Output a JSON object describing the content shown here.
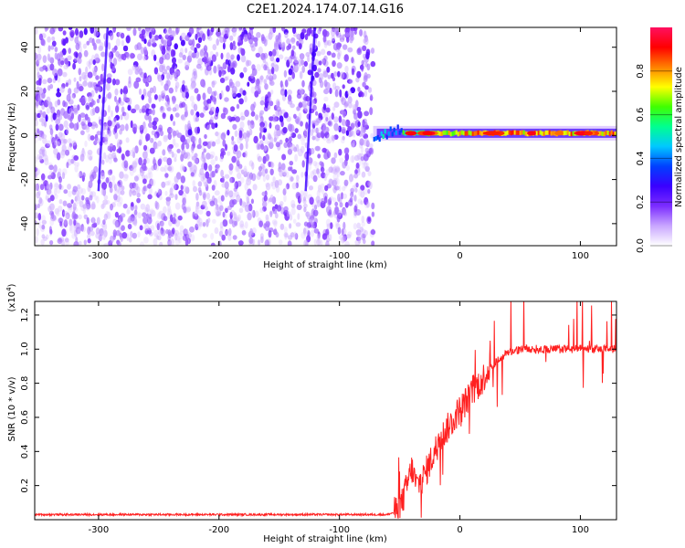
{
  "figure_title": "C2E1.2024.174.07.14.G16",
  "chart_data": [
    {
      "type": "heatmap",
      "xlabel": "Height of straight line (km)",
      "ylabel": "Frequency (Hz)",
      "xlim": [
        -353,
        130
      ],
      "ylim": [
        -50,
        49
      ],
      "xticks": [
        -300,
        -200,
        -100,
        0,
        100
      ],
      "xtick_labels": [
        "-300",
        "-200",
        "-100",
        "0",
        "100"
      ],
      "yticks": [
        -40,
        -20,
        0,
        20,
        40
      ],
      "ytick_labels": [
        "-40",
        "-20",
        "0",
        "20",
        "40"
      ],
      "colorbar": {
        "label": "Normalized spectral amplitude",
        "range": [
          0,
          1
        ],
        "ticks": [
          0.0,
          0.2,
          0.4,
          0.6,
          0.8
        ],
        "tick_labels": [
          "0.0",
          "0.2",
          "0.4",
          "0.6",
          "0.8"
        ],
        "colors": [
          "#ffffff",
          "#c9a6ff",
          "#7b2cff",
          "#3a00ff",
          "#0040ff",
          "#00c8ff",
          "#00ff90",
          "#40ff00",
          "#ffff00",
          "#ff8000",
          "#ff0000",
          "#ff1060"
        ]
      },
      "regions": [
        {
          "name": "scattered noise",
          "x": [
            -353,
            -72
          ],
          "y": [
            -50,
            49
          ],
          "amplitude": [
            0.0,
            0.25
          ]
        },
        {
          "name": "carrier line",
          "x": [
            -72,
            130
          ],
          "y_center": 1,
          "amplitude": [
            0.3,
            1.0
          ]
        }
      ],
      "streaks_x": [
        -297,
        -125
      ]
    },
    {
      "type": "line",
      "xlabel": "Height of straight line (km)",
      "ylabel": "SNR (10 * v/v)",
      "y_multiplier": "(x10^4)",
      "xlim": [
        -353,
        130
      ],
      "ylim": [
        0,
        1.28
      ],
      "xticks": [
        -300,
        -200,
        -100,
        0,
        100
      ],
      "xtick_labels": [
        "-300",
        "-200",
        "-100",
        "0",
        "100"
      ],
      "yticks": [
        0.2,
        0.4,
        0.6,
        0.8,
        1.0,
        1.2
      ],
      "ytick_labels": [
        "0.2",
        "0.4",
        "0.6",
        "0.8",
        "1.0",
        "1.2"
      ],
      "color": "#ff2020",
      "x": [
        -353,
        -300,
        -250,
        -200,
        -150,
        -100,
        -60,
        -52,
        -48,
        -44,
        -40,
        -36,
        -30,
        -24,
        -18,
        -12,
        -6,
        0,
        8,
        16,
        24,
        32,
        40,
        50,
        60,
        70,
        80,
        90,
        100,
        110,
        120,
        130
      ],
      "y": [
        0.03,
        0.03,
        0.03,
        0.03,
        0.03,
        0.03,
        0.03,
        0.05,
        0.1,
        0.2,
        0.3,
        0.2,
        0.25,
        0.35,
        0.45,
        0.52,
        0.58,
        0.65,
        0.72,
        0.8,
        0.88,
        0.94,
        0.98,
        1.0,
        1.0,
        1.0,
        1.0,
        1.0,
        1.0,
        1.0,
        1.0,
        1.0
      ]
    }
  ]
}
